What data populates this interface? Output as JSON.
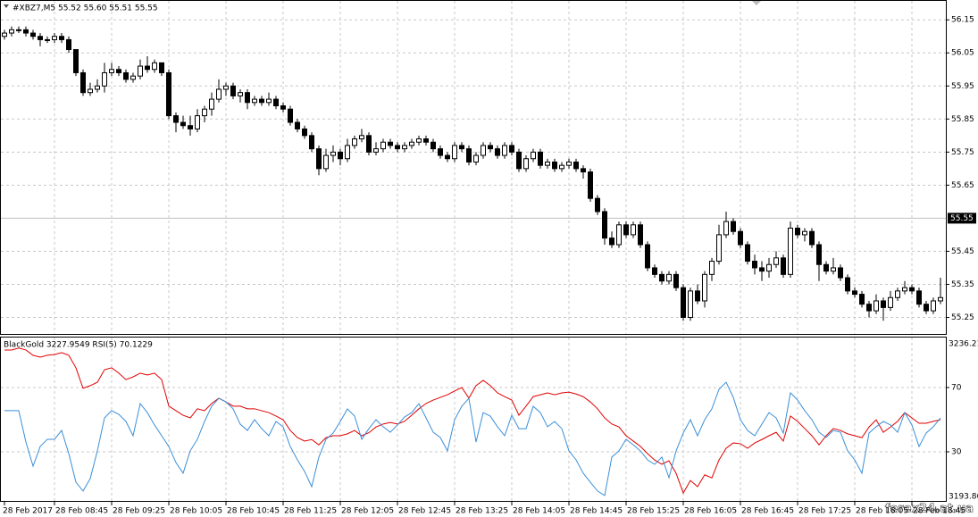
{
  "chart_data": [
    {
      "type": "candlestick",
      "title": "#XBZ7,M5  55.52 55.60 55.51 55.55",
      "ylim": [
        55.2,
        56.21
      ],
      "yticks": [
        55.25,
        55.35,
        55.45,
        55.65,
        55.75,
        55.85,
        55.95,
        56.05,
        56.15
      ],
      "current_price": 55.55,
      "grid": true,
      "color": "#000000",
      "candles": [
        [
          56.1,
          56.12,
          56.09,
          56.11
        ],
        [
          56.11,
          56.13,
          56.1,
          56.12
        ],
        [
          56.12,
          56.13,
          56.11,
          56.12
        ],
        [
          56.12,
          56.13,
          56.1,
          56.11
        ],
        [
          56.11,
          56.12,
          56.09,
          56.1
        ],
        [
          56.1,
          56.11,
          56.07,
          56.09
        ],
        [
          56.09,
          56.1,
          56.08,
          56.09
        ],
        [
          56.09,
          56.11,
          56.08,
          56.1
        ],
        [
          56.1,
          56.11,
          56.08,
          56.09
        ],
        [
          56.09,
          56.1,
          56.05,
          56.06
        ],
        [
          56.06,
          56.06,
          55.98,
          55.99
        ],
        [
          55.99,
          56.0,
          55.92,
          55.93
        ],
        [
          55.93,
          55.96,
          55.92,
          55.94
        ],
        [
          55.94,
          55.97,
          55.93,
          55.95
        ],
        [
          55.95,
          56.02,
          55.93,
          55.99
        ],
        [
          55.99,
          56.02,
          55.98,
          56.0
        ],
        [
          56.0,
          56.01,
          55.98,
          55.99
        ],
        [
          55.99,
          56.0,
          55.96,
          55.97
        ],
        [
          55.97,
          55.99,
          55.96,
          55.98
        ],
        [
          55.98,
          56.03,
          55.97,
          56.01
        ],
        [
          56.01,
          56.04,
          55.99,
          56.0
        ],
        [
          56.0,
          56.03,
          55.99,
          56.02
        ],
        [
          56.02,
          56.02,
          55.98,
          55.99
        ],
        [
          55.99,
          56.0,
          55.85,
          55.86
        ],
        [
          55.86,
          55.87,
          55.81,
          55.84
        ],
        [
          55.84,
          55.86,
          55.82,
          55.83
        ],
        [
          55.83,
          55.86,
          55.8,
          55.82
        ],
        [
          55.82,
          55.88,
          55.81,
          55.86
        ],
        [
          55.86,
          55.89,
          55.84,
          55.88
        ],
        [
          55.88,
          55.93,
          55.86,
          55.91
        ],
        [
          55.91,
          55.97,
          55.9,
          55.94
        ],
        [
          55.94,
          55.96,
          55.92,
          55.95
        ],
        [
          55.95,
          55.96,
          55.91,
          55.92
        ],
        [
          55.92,
          55.94,
          55.9,
          55.93
        ],
        [
          55.93,
          55.94,
          55.88,
          55.9
        ],
        [
          55.9,
          55.92,
          55.89,
          55.91
        ],
        [
          55.91,
          55.92,
          55.89,
          55.9
        ],
        [
          55.9,
          55.93,
          55.89,
          55.91
        ],
        [
          55.91,
          55.92,
          55.88,
          55.89
        ],
        [
          55.89,
          55.9,
          55.87,
          55.88
        ],
        [
          55.88,
          55.89,
          55.83,
          55.84
        ],
        [
          55.84,
          55.85,
          55.81,
          55.82
        ],
        [
          55.82,
          55.83,
          55.79,
          55.8
        ],
        [
          55.8,
          55.81,
          55.75,
          55.76
        ],
        [
          55.76,
          55.77,
          55.68,
          55.7
        ],
        [
          55.7,
          55.76,
          55.69,
          55.74
        ],
        [
          55.74,
          55.77,
          55.72,
          55.75
        ],
        [
          55.75,
          55.76,
          55.71,
          55.73
        ],
        [
          55.73,
          55.79,
          55.72,
          55.77
        ],
        [
          55.77,
          55.8,
          55.76,
          55.79
        ],
        [
          55.79,
          55.82,
          55.78,
          55.8
        ],
        [
          55.8,
          55.81,
          55.74,
          55.75
        ],
        [
          55.75,
          55.78,
          55.74,
          55.76
        ],
        [
          55.76,
          55.79,
          55.75,
          55.78
        ],
        [
          55.78,
          55.79,
          55.76,
          55.77
        ],
        [
          55.77,
          55.78,
          55.75,
          55.76
        ],
        [
          55.76,
          55.78,
          55.75,
          55.77
        ],
        [
          55.77,
          55.79,
          55.76,
          55.78
        ],
        [
          55.78,
          55.8,
          55.77,
          55.79
        ],
        [
          55.79,
          55.8,
          55.77,
          55.78
        ],
        [
          55.78,
          55.79,
          55.75,
          55.76
        ],
        [
          55.76,
          55.77,
          55.73,
          55.74
        ],
        [
          55.74,
          55.75,
          55.72,
          55.73
        ],
        [
          55.73,
          55.78,
          55.72,
          55.77
        ],
        [
          55.77,
          55.78,
          55.75,
          55.76
        ],
        [
          55.76,
          55.77,
          55.71,
          55.72
        ],
        [
          55.72,
          55.75,
          55.71,
          55.74
        ],
        [
          55.74,
          55.78,
          55.73,
          55.77
        ],
        [
          55.77,
          55.78,
          55.75,
          55.76
        ],
        [
          55.76,
          55.77,
          55.73,
          55.74
        ],
        [
          55.74,
          55.78,
          55.73,
          55.77
        ],
        [
          55.77,
          55.78,
          55.74,
          55.75
        ],
        [
          55.75,
          55.76,
          55.69,
          55.7
        ],
        [
          55.7,
          55.74,
          55.69,
          55.73
        ],
        [
          55.73,
          55.76,
          55.72,
          55.75
        ],
        [
          55.75,
          55.76,
          55.7,
          55.71
        ],
        [
          55.71,
          55.73,
          55.7,
          55.72
        ],
        [
          55.72,
          55.73,
          55.69,
          55.7
        ],
        [
          55.7,
          55.72,
          55.69,
          55.71
        ],
        [
          55.71,
          55.73,
          55.7,
          55.72
        ],
        [
          55.72,
          55.73,
          55.69,
          55.7
        ],
        [
          55.7,
          55.71,
          55.67,
          55.69
        ],
        [
          55.69,
          55.7,
          55.6,
          55.61
        ],
        [
          55.61,
          55.62,
          55.56,
          55.57
        ],
        [
          55.57,
          55.58,
          55.47,
          55.49
        ],
        [
          55.49,
          55.51,
          55.46,
          55.47
        ],
        [
          55.47,
          55.54,
          55.46,
          55.53
        ],
        [
          55.53,
          55.54,
          55.49,
          55.5
        ],
        [
          55.5,
          55.54,
          55.49,
          55.53
        ],
        [
          55.53,
          55.54,
          55.46,
          55.47
        ],
        [
          55.47,
          55.48,
          55.39,
          55.4
        ],
        [
          55.4,
          55.41,
          55.37,
          55.38
        ],
        [
          55.38,
          55.39,
          55.35,
          55.36
        ],
        [
          55.36,
          55.39,
          55.35,
          55.38
        ],
        [
          55.38,
          55.39,
          55.33,
          55.34
        ],
        [
          55.34,
          55.35,
          55.24,
          55.25
        ],
        [
          55.25,
          55.34,
          55.24,
          55.33
        ],
        [
          55.33,
          55.35,
          55.29,
          55.3
        ],
        [
          55.3,
          55.39,
          55.28,
          55.38
        ],
        [
          55.38,
          55.43,
          55.36,
          55.42
        ],
        [
          55.42,
          55.53,
          55.41,
          55.5
        ],
        [
          55.5,
          55.57,
          55.49,
          55.54
        ],
        [
          55.54,
          55.55,
          55.5,
          55.51
        ],
        [
          55.51,
          55.52,
          55.46,
          55.47
        ],
        [
          55.47,
          55.48,
          55.41,
          55.42
        ],
        [
          55.42,
          55.44,
          55.38,
          55.4
        ],
        [
          55.4,
          55.42,
          55.36,
          55.39
        ],
        [
          55.39,
          55.43,
          55.37,
          55.41
        ],
        [
          55.41,
          55.45,
          55.4,
          55.43
        ],
        [
          55.43,
          55.44,
          55.37,
          55.38
        ],
        [
          55.38,
          55.54,
          55.37,
          55.52
        ],
        [
          55.52,
          55.53,
          55.49,
          55.5
        ],
        [
          55.5,
          55.52,
          55.48,
          55.51
        ],
        [
          55.51,
          55.52,
          55.46,
          55.47
        ],
        [
          55.47,
          55.48,
          55.36,
          55.41
        ],
        [
          55.41,
          55.42,
          55.38,
          55.39
        ],
        [
          55.39,
          55.43,
          55.38,
          55.4
        ],
        [
          55.4,
          55.41,
          55.36,
          55.37
        ],
        [
          55.37,
          55.38,
          55.32,
          55.33
        ],
        [
          55.33,
          55.34,
          55.31,
          55.32
        ],
        [
          55.32,
          55.33,
          55.28,
          55.29
        ],
        [
          55.29,
          55.3,
          55.25,
          55.27
        ],
        [
          55.27,
          55.32,
          55.26,
          55.3
        ],
        [
          55.3,
          55.31,
          55.24,
          55.28
        ],
        [
          55.28,
          55.33,
          55.27,
          55.31
        ],
        [
          55.31,
          55.34,
          55.3,
          55.33
        ],
        [
          55.33,
          55.36,
          55.32,
          55.34
        ],
        [
          55.34,
          55.35,
          55.32,
          55.33
        ],
        [
          55.33,
          55.34,
          55.28,
          55.29
        ],
        [
          55.29,
          55.3,
          55.26,
          55.27
        ],
        [
          55.27,
          55.31,
          55.26,
          55.3
        ],
        [
          55.3,
          55.37,
          55.29,
          55.31
        ]
      ]
    },
    {
      "type": "line",
      "title": "BlackGold 3227.9549  RSI(5) 70.1229",
      "ylim": [
        0,
        100
      ],
      "yticks": [
        30,
        70
      ],
      "y2lim": [
        3193.86,
        3236.21
      ],
      "y2ticks": [
        3193.86,
        3236.21
      ],
      "grid": true,
      "watermark": "forex24.at.ua",
      "categories": [
        "28 Feb 2017",
        null,
        null,
        null,
        null,
        null,
        null,
        "28 Feb 08:45",
        null,
        null,
        null,
        null,
        null,
        null,
        null,
        "28 Feb 09:25",
        null,
        null,
        null,
        null,
        null,
        null,
        null,
        "28 Feb 10:05",
        null,
        null,
        null,
        null,
        null,
        null,
        null,
        "28 Feb 10:45",
        null,
        null,
        null,
        null,
        null,
        null,
        null,
        "28 Feb 11:25",
        null,
        null,
        null,
        null,
        null,
        null,
        null,
        "28 Feb 12:05",
        null,
        null,
        null,
        null,
        null,
        null,
        null,
        "28 Feb 12:45",
        null,
        null,
        null,
        null,
        null,
        null,
        null,
        "28 Feb 13:25",
        null,
        null,
        null,
        null,
        null,
        null,
        null,
        "28 Feb 14:05",
        null,
        null,
        null,
        null,
        null,
        null,
        null,
        "28 Feb 14:45",
        null,
        null,
        null,
        null,
        null,
        null,
        null,
        "28 Feb 15:25",
        null,
        null,
        null,
        null,
        null,
        null,
        null,
        "28 Feb 16:05",
        null,
        null,
        null,
        null,
        null,
        null,
        null,
        "28 Feb 16:45",
        null,
        null,
        null,
        null,
        null,
        null,
        null,
        "28 Feb 17:25",
        null,
        null,
        null,
        null,
        null,
        null,
        null,
        "28 Feb 18:05",
        null,
        null,
        null,
        null,
        null,
        null,
        null,
        "28 Feb 18:45",
        null,
        null,
        null,
        null
      ],
      "series": [
        {
          "name": "BlackGold",
          "color": "#e00000",
          "axis": "y2",
          "values": [
            3233.4,
            3233.4,
            3233.9,
            3233.4,
            3232.0,
            3231.5,
            3232.0,
            3232.2,
            3232.7,
            3232.0,
            3228.7,
            3223.3,
            3224.0,
            3224.9,
            3228.2,
            3228.7,
            3227.3,
            3225.6,
            3226.3,
            3227.3,
            3226.8,
            3227.3,
            3225.6,
            3218.6,
            3217.4,
            3216.2,
            3215.5,
            3217.9,
            3217.4,
            3219.3,
            3220.7,
            3219.7,
            3218.6,
            3218.6,
            3217.9,
            3217.9,
            3217.4,
            3216.9,
            3216.0,
            3215.0,
            3212.2,
            3210.3,
            3209.4,
            3209.8,
            3208.4,
            3210.3,
            3210.8,
            3210.8,
            3211.3,
            3212.2,
            3210.8,
            3211.6,
            3213.1,
            3213.9,
            3214.3,
            3213.9,
            3214.6,
            3216.2,
            3217.9,
            3219.3,
            3220.2,
            3220.9,
            3221.6,
            3222.6,
            3223.5,
            3220.7,
            3224.0,
            3225.4,
            3224.0,
            3222.1,
            3221.1,
            3220.2,
            3216.2,
            3218.6,
            3221.1,
            3221.6,
            3222.1,
            3221.6,
            3222.1,
            3222.3,
            3221.8,
            3221.1,
            3219.7,
            3217.9,
            3215.5,
            3213.9,
            3213.1,
            3210.8,
            3209.4,
            3208.0,
            3206.1,
            3204.4,
            3203.3,
            3204.2,
            3200.9,
            3195.7,
            3199.0,
            3197.4,
            3200.5,
            3199.7,
            3204.4,
            3207.5,
            3208.9,
            3208.7,
            3207.5,
            3208.9,
            3209.8,
            3210.8,
            3211.7,
            3209.4,
            3216.0,
            3214.6,
            3212.7,
            3210.8,
            3208.4,
            3210.8,
            3212.7,
            3212.2,
            3211.3,
            3210.8,
            3210.3,
            3213.1,
            3215.0,
            3211.7,
            3213.1,
            3214.6,
            3216.9,
            3215.5,
            3214.1,
            3214.1,
            3214.6,
            3215.0
          ]
        },
        {
          "name": "RSI(5)",
          "color": "#3a8fd8",
          "values": [
            55.6,
            55.6,
            55.6,
            36.1,
            21.1,
            33.3,
            37.8,
            37.8,
            43.3,
            28.9,
            11.1,
            5.6,
            13.3,
            30.6,
            51.1,
            55.6,
            53.3,
            48.9,
            40.0,
            60.0,
            54.4,
            46.7,
            40.0,
            33.3,
            23.3,
            16.7,
            30.6,
            37.8,
            48.9,
            58.3,
            63.3,
            61.1,
            56.7,
            47.2,
            43.3,
            50.0,
            44.4,
            40.0,
            48.9,
            45.6,
            33.3,
            25.0,
            17.8,
            8.3,
            26.7,
            37.8,
            41.7,
            48.9,
            56.7,
            52.2,
            37.8,
            44.4,
            50.0,
            45.6,
            42.2,
            46.7,
            51.7,
            54.4,
            60.0,
            51.1,
            42.2,
            38.9,
            30.6,
            50.0,
            58.3,
            63.3,
            36.1,
            54.4,
            52.2,
            45.6,
            40.0,
            52.8,
            44.4,
            44.4,
            58.3,
            54.4,
            45.6,
            48.9,
            44.4,
            30.6,
            25.0,
            16.7,
            11.1,
            5.6,
            2.8,
            26.7,
            30.6,
            37.8,
            34.4,
            30.6,
            25.0,
            22.2,
            26.7,
            13.9,
            30.6,
            41.7,
            50.0,
            40.0,
            50.0,
            56.7,
            68.9,
            73.3,
            63.9,
            50.0,
            43.3,
            40.0,
            47.2,
            54.4,
            51.1,
            41.7,
            66.7,
            62.2,
            55.6,
            50.0,
            42.2,
            38.9,
            43.3,
            42.2,
            30.6,
            25.0,
            16.7,
            41.7,
            45.6,
            48.9,
            46.7,
            42.2,
            54.4,
            46.7,
            33.3,
            41.7,
            45.6,
            51.1
          ]
        }
      ]
    }
  ]
}
